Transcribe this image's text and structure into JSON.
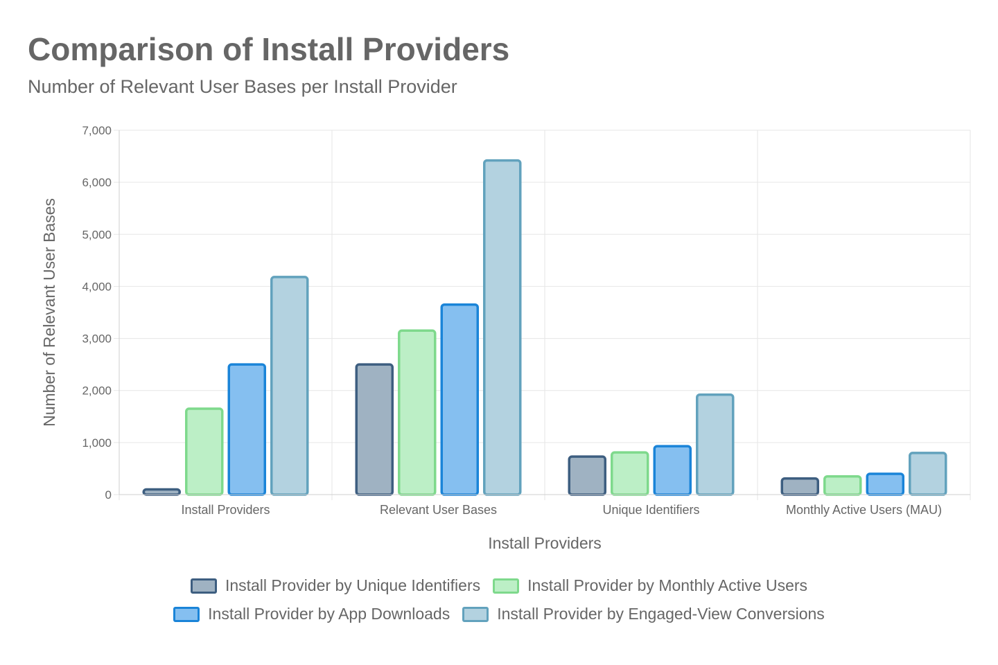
{
  "header": {
    "title": "Comparison of Install Providers",
    "subtitle": "Number of Relevant User Bases per Install Provider"
  },
  "chart_data": {
    "type": "bar",
    "title": "Comparison of Install Providers",
    "subtitle": "Number of Relevant User Bases per Install Provider",
    "xlabel": "Install Providers",
    "ylabel": "Number of Relevant User Bases",
    "categories": [
      "Install Providers",
      "Relevant User Bases",
      "Unique Identifiers",
      "Monthly Active Users (MAU)"
    ],
    "ylim": [
      0,
      7000
    ],
    "yticks": [
      0,
      1000,
      2000,
      3000,
      4000,
      5000,
      6000,
      7000
    ],
    "ytick_labels": [
      "0",
      "1,000",
      "2,000",
      "3,000",
      "4,000",
      "5,000",
      "6,000",
      "7,000"
    ],
    "grid": true,
    "legend_position": "bottom",
    "series": [
      {
        "name": "Install Provider by Unique Identifiers",
        "values": [
          100,
          2500,
          730,
          310
        ],
        "fill": "#9fb2c2",
        "stroke": "#3d5e80"
      },
      {
        "name": "Install Provider by Monthly Active Users",
        "values": [
          1650,
          3150,
          810,
          350
        ],
        "fill": "#bcefc6",
        "stroke": "#7ed98c"
      },
      {
        "name": "Install Provider by App Downloads",
        "values": [
          2500,
          3650,
          930,
          400
        ],
        "fill": "#85bff0",
        "stroke": "#1a84d8"
      },
      {
        "name": "Install Provider by Engaged-View Conversions",
        "values": [
          4180,
          6420,
          1920,
          800
        ],
        "fill": "#b3d2e0",
        "stroke": "#62a2bd"
      }
    ]
  }
}
